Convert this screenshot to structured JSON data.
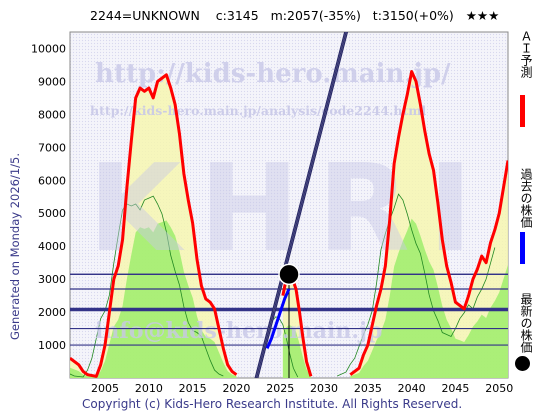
{
  "header": {
    "code": "2244=UNKNOWN",
    "c": "c:3145",
    "m": "m:2057(-35%)",
    "t": "t:3150(+0%)",
    "stars": "★★★"
  },
  "side_text": "Generated on Monday 2026/1/5.",
  "footer": "Copyright (c) Kids-Hero Research Institute. All Rights Reserved.",
  "watermarks": {
    "url": "http://kids-hero.main.jp/",
    "analysis_url": "http://kids-hero.main.jp/analysis/code2244.html",
    "big": "KHRI",
    "email": "info@kids-hero.main.jp"
  },
  "legend": {
    "ai": "ＡＩ予測",
    "past": "過去の株価",
    "latest": "最新の株価"
  },
  "colors": {
    "ai": "#ff0000",
    "past": "#0000ff",
    "latest": "#000000",
    "band": "#2a2a66",
    "green_fill": "#99ee66",
    "yellow_fill": "#f6f6b0",
    "hline": "#333388"
  },
  "chart_data": {
    "type": "line",
    "title": "",
    "xlabel": "",
    "ylabel": "",
    "xlim": [
      2001,
      2051
    ],
    "ylim": [
      0,
      10500
    ],
    "x_ticks": [
      2005,
      2010,
      2015,
      2020,
      2025,
      2030,
      2035,
      2040,
      2045,
      2050
    ],
    "y_ticks": [
      1000,
      2000,
      3000,
      4000,
      5000,
      6000,
      7000,
      8000,
      9000,
      10000
    ],
    "horizontal_levels": [
      3150,
      3145,
      2700,
      2100,
      2057,
      1500,
      1000
    ],
    "latest_point": {
      "x": 2026.0,
      "y": 3145
    },
    "vertical_marker_x": 2026.0,
    "series": [
      {
        "key": "ai",
        "x": [
          2001,
          2002,
          2002.5,
          2003,
          2004,
          2004.5,
          2005,
          2005.5,
          2006,
          2006.5,
          2007,
          2007.5,
          2008,
          2008.5,
          2009,
          2009.5,
          2010,
          2010.5,
          2011,
          2011.5,
          2012,
          2012.5,
          2013,
          2013.5,
          2014,
          2014.5,
          2015,
          2015.5,
          2016,
          2016.5,
          2017,
          2017.5,
          2018,
          2018.5,
          2019,
          2019.5,
          2020
        ],
        "y": [
          600,
          400,
          200,
          100,
          50,
          400,
          1000,
          2000,
          3000,
          3400,
          4200,
          5800,
          7200,
          8500,
          8800,
          8700,
          8800,
          8500,
          9000,
          9100,
          9200,
          8800,
          8300,
          7400,
          6200,
          5400,
          4700,
          3600,
          2800,
          2400,
          2300,
          2100,
          1500,
          900,
          400,
          200,
          100
        ]
      },
      {
        "key": "ai",
        "x": [
          2025.3,
          2025.6,
          2026,
          2026.4,
          2026.8,
          2027.2,
          2027.6,
          2028,
          2028.5
        ],
        "y": [
          2500,
          2900,
          3100,
          3000,
          2700,
          2000,
          1200,
          500,
          50
        ]
      },
      {
        "key": "ai",
        "x": [
          2033,
          2034,
          2034.5,
          2035,
          2035.5,
          2036,
          2036.5,
          2037,
          2037.5,
          2038,
          2038.5,
          2039,
          2039.5,
          2040,
          2040.5,
          2041,
          2041.5,
          2042,
          2042.5,
          2043,
          2043.5,
          2044,
          2044.5,
          2045,
          2045.5,
          2046,
          2046.5,
          2047,
          2047.5,
          2048,
          2048.5,
          2049,
          2049.5,
          2050,
          2050.5,
          2051
        ],
        "y": [
          100,
          300,
          700,
          1000,
          1600,
          2200,
          2700,
          3400,
          4800,
          6500,
          7300,
          8000,
          8600,
          9300,
          9000,
          8300,
          7500,
          6800,
          6300,
          5300,
          4200,
          3400,
          2900,
          2300,
          2200,
          2100,
          2500,
          3000,
          3300,
          3700,
          3500,
          4100,
          4500,
          5000,
          5800,
          6600
        ]
      },
      {
        "key": "past",
        "x": [
          2023.5,
          2024,
          2024.5,
          2025,
          2025.5,
          2026
        ],
        "y": [
          900,
          1200,
          1600,
          2000,
          2400,
          2700
        ]
      }
    ],
    "band": {
      "x": [
        2021.8,
        2033.2
      ],
      "center": [
        -500,
        11200
      ],
      "halfwidth": 160
    }
  }
}
